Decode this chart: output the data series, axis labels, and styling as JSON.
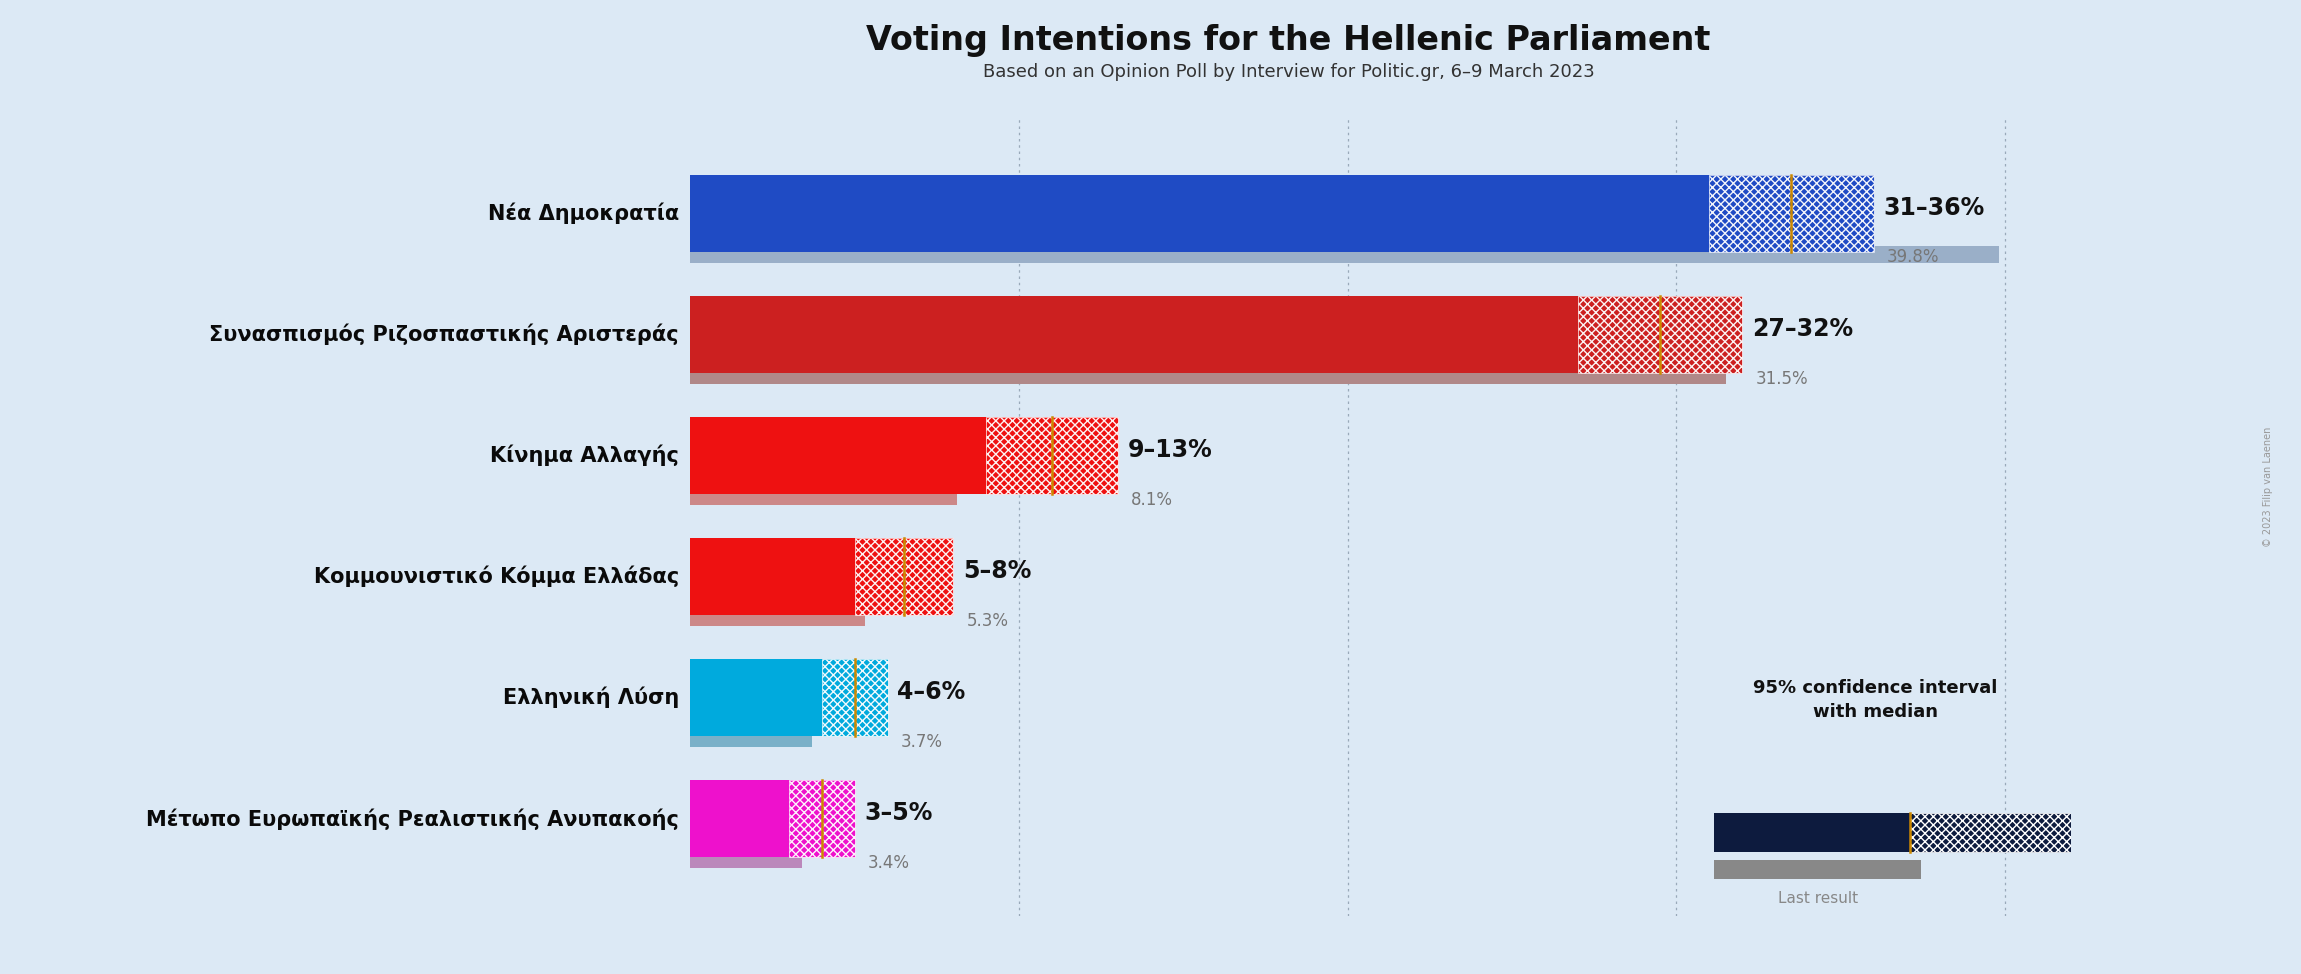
{
  "title": "Voting Intentions for the Hellenic Parliament",
  "subtitle": "Based on an Opinion Poll by Interview for Politic.gr, 6–9 March 2023",
  "background_color": "#dce9f5",
  "copyright": "© 2023 Filip van Laenen",
  "parties": [
    {
      "name": "Νέα Δημοκρατία",
      "ci_low": 31,
      "ci_high": 36,
      "median": 33.5,
      "last_result": 39.8,
      "color": "#1f4bc4",
      "last_result_color": "#9aafc8",
      "label": "31–36%",
      "last_label": "39.8%"
    },
    {
      "name": "Συνασπισμός Ριζοσπαστικής Αριστεράς",
      "ci_low": 27,
      "ci_high": 32,
      "median": 29.5,
      "last_result": 31.5,
      "color": "#cc2020",
      "last_result_color": "#b08888",
      "label": "27–32%",
      "last_label": "31.5%"
    },
    {
      "name": "Κίνημα Αλλαγής",
      "ci_low": 9,
      "ci_high": 13,
      "median": 11.0,
      "last_result": 8.1,
      "color": "#ee1111",
      "last_result_color": "#cc8888",
      "label": "9–13%",
      "last_label": "8.1%"
    },
    {
      "name": "Κομμουνιστικό Κόμμα Ελλάδας",
      "ci_low": 5,
      "ci_high": 8,
      "median": 6.5,
      "last_result": 5.3,
      "color": "#ee1111",
      "last_result_color": "#cc8888",
      "label": "5–8%",
      "last_label": "5.3%"
    },
    {
      "name": "Ελληνική Λύση",
      "ci_low": 4,
      "ci_high": 6,
      "median": 5.0,
      "last_result": 3.7,
      "color": "#00aadd",
      "last_result_color": "#7ab0c8",
      "label": "4–6%",
      "last_label": "3.7%"
    },
    {
      "name": "Μέτωπο Ευρωπαϊκής Ρεαλιστικής Ανυπακοής",
      "ci_low": 3,
      "ci_high": 5,
      "median": 4.0,
      "last_result": 3.4,
      "color": "#ee11cc",
      "last_result_color": "#bb88bb",
      "label": "3–5%",
      "last_label": "3.4%"
    }
  ],
  "x_max": 42,
  "xlim_left": 0,
  "title_fontsize": 24,
  "subtitle_fontsize": 13,
  "party_fontsize": 15,
  "label_fontsize": 17,
  "last_label_fontsize": 12,
  "bar_height": 0.32,
  "last_bar_height": 0.14,
  "median_line_color": "#cc8800",
  "grid_color": "#8899aa",
  "legend_ci_color": "#0d1b3e",
  "legend_last_color": "#888888"
}
